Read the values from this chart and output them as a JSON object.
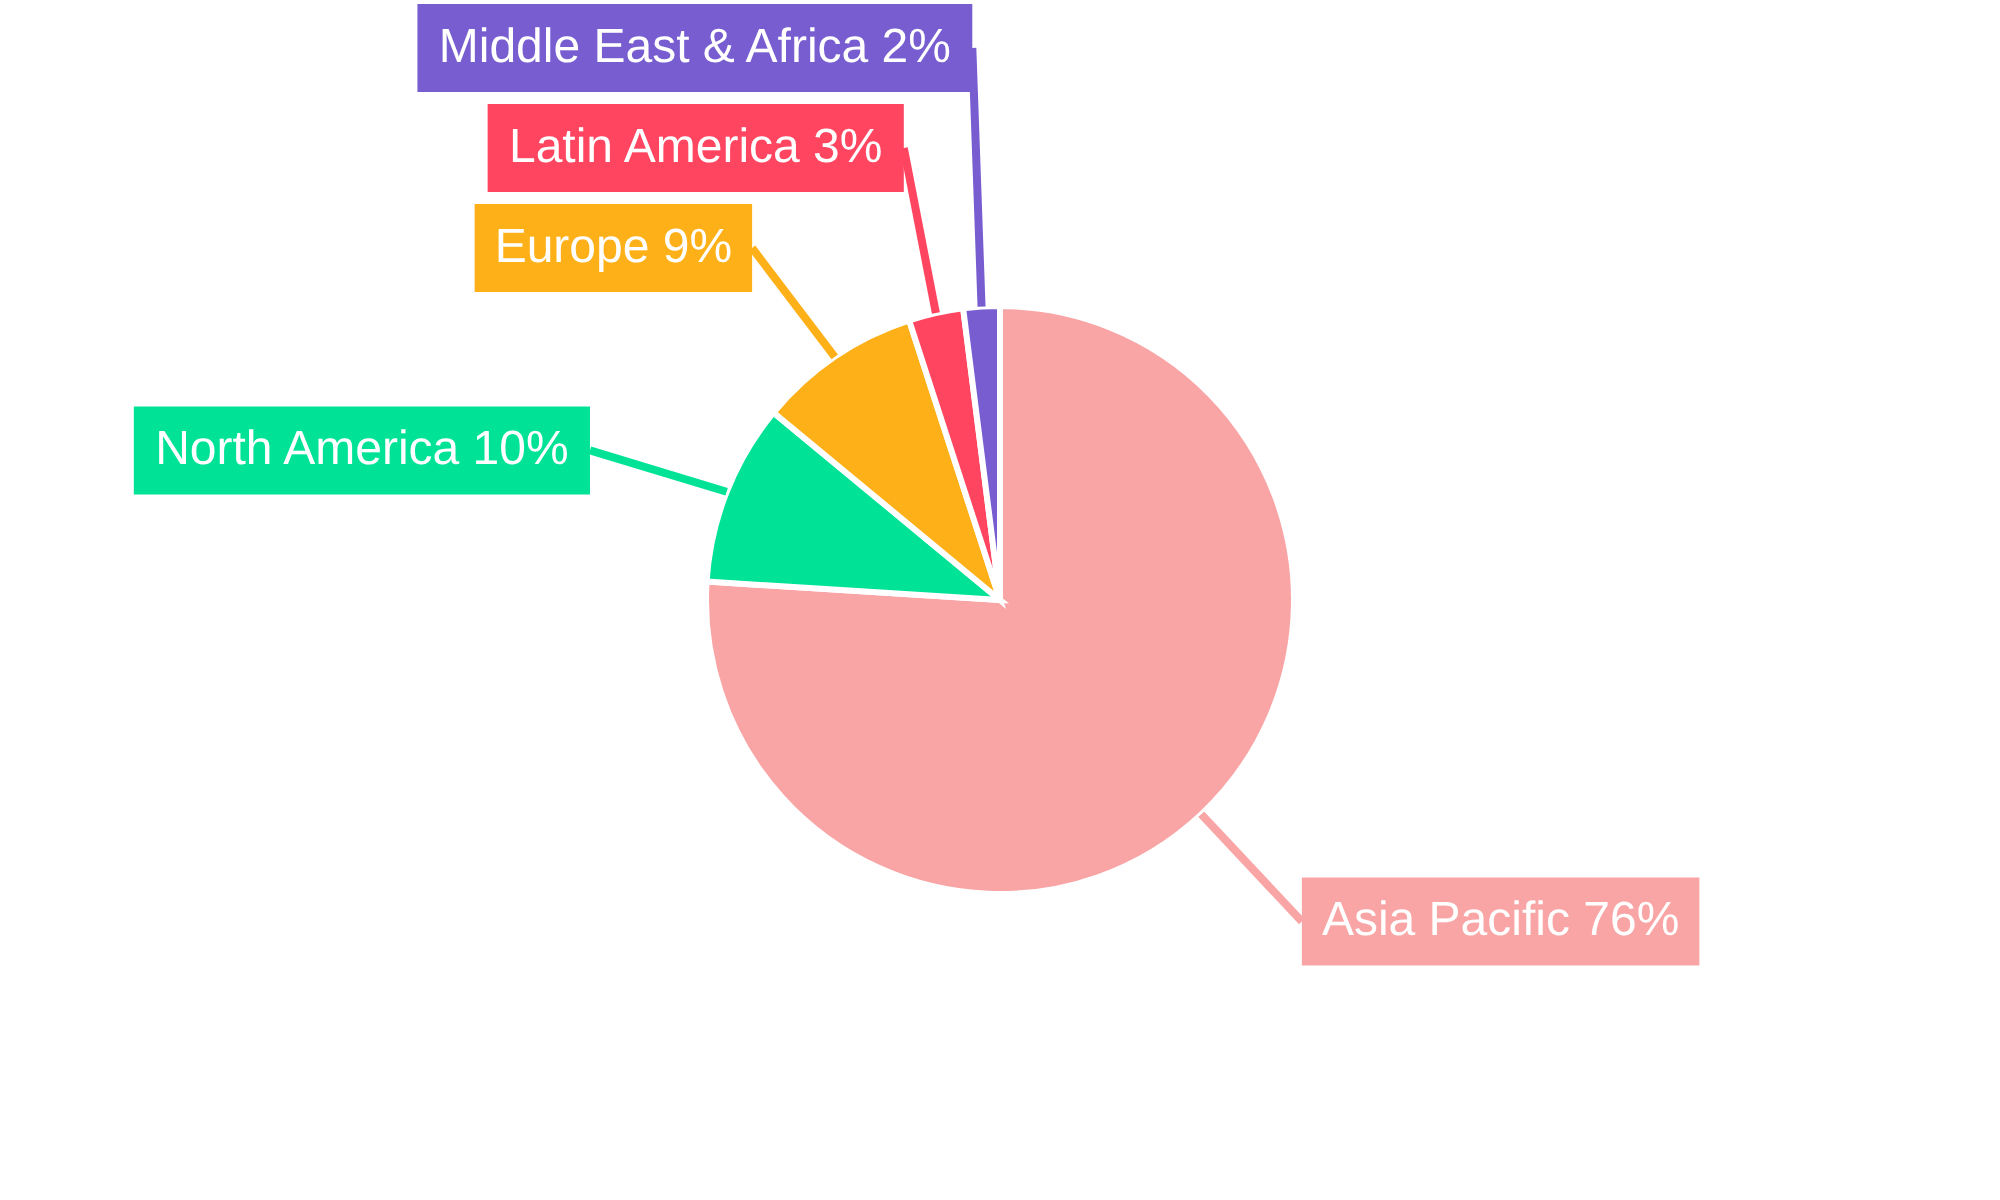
{
  "chart_data": {
    "type": "pie",
    "categories": [
      "Asia Pacific",
      "North America",
      "Europe",
      "Latin America",
      "Middle East & Africa"
    ],
    "values": [
      76,
      10,
      9,
      3,
      2
    ],
    "colors": [
      "#f9a5a5",
      "#00e396",
      "#feb019",
      "#ff4560",
      "#775dd0"
    ],
    "value_labels": [
      "76%",
      "10%",
      "9%",
      "3%",
      "2%"
    ]
  }
}
